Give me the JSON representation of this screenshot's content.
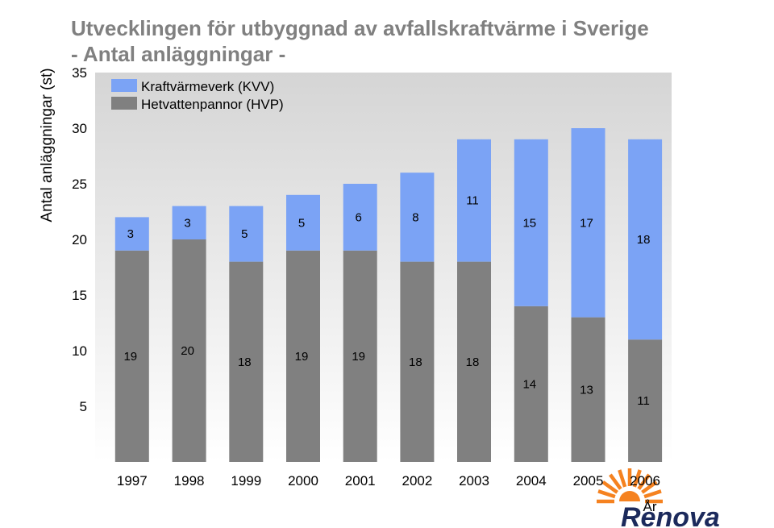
{
  "chart_data": {
    "type": "bar",
    "stacked": true,
    "title": "Utvecklingen för utbyggnad av avfallskraftvärme i Sverige",
    "subtitle": "- Antal anläggningar -",
    "title_color": "#808080",
    "xlabel": "År",
    "ylabel": "Antal anläggningar (st)",
    "categories": [
      "1997",
      "1998",
      "1999",
      "2000",
      "2001",
      "2002",
      "2003",
      "2004",
      "2005",
      "2006"
    ],
    "series": [
      {
        "name": "Kraftvärmeverk (KVV)",
        "color": "#7BA3F5",
        "values": [
          3,
          3,
          5,
          5,
          6,
          8,
          11,
          15,
          17,
          18
        ]
      },
      {
        "name": "Hetvattenpannor (HVP)",
        "color": "#808080",
        "values": [
          19,
          20,
          18,
          19,
          19,
          18,
          18,
          14,
          13,
          11
        ]
      }
    ],
    "ylim": [
      0,
      35
    ],
    "yticks": [
      5,
      10,
      15,
      20,
      25,
      30,
      35
    ],
    "grid": false,
    "legend": "top-left",
    "data_labels": true
  },
  "logo": {
    "text": "Renova",
    "icon": "sun-icon",
    "sun_color": "#F58220",
    "text_color": "#1C2A5C"
  }
}
